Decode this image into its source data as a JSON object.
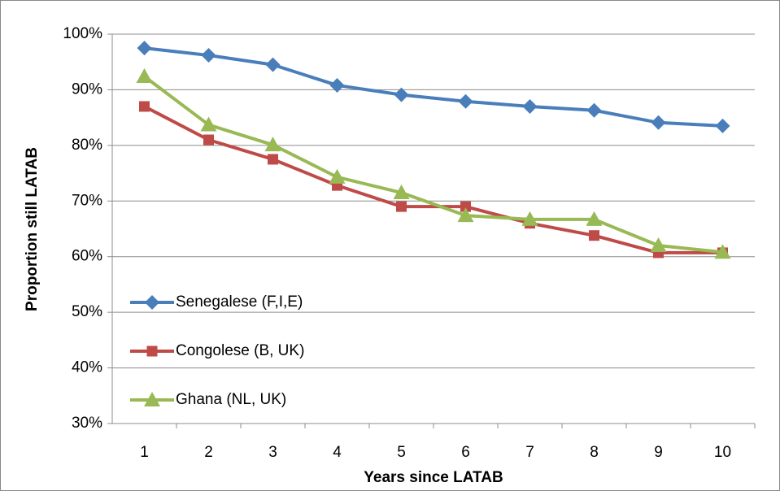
{
  "chart_data": {
    "type": "line",
    "x_label": "Years since LATAB",
    "y_label": "Proportion still LATAB",
    "categories": [
      "1",
      "2",
      "3",
      "4",
      "5",
      "6",
      "7",
      "8",
      "9",
      "10"
    ],
    "series": [
      {
        "name": "Senegalese (F,I,E)",
        "color": "#4a7ebb",
        "marker": "diamond",
        "values": [
          97.5,
          96.2,
          94.5,
          90.8,
          89.1,
          87.9,
          87,
          86.3,
          84.1,
          83.5
        ]
      },
      {
        "name": "Congolese (B, UK)",
        "color": "#be4b48",
        "marker": "square",
        "values": [
          87,
          81,
          77.5,
          72.8,
          69,
          69,
          66,
          63.8,
          60.7,
          60.7
        ]
      },
      {
        "name": "Ghana (NL, UK)",
        "color": "#98b954",
        "marker": "triangle",
        "values": [
          92.4,
          83.7,
          80.1,
          74.3,
          71.5,
          67.4,
          66.7,
          66.7,
          62,
          60.8
        ]
      }
    ],
    "ylim": [
      30,
      100
    ],
    "yticks": [
      {
        "value": 30,
        "label": "30%"
      },
      {
        "value": 40,
        "label": "40%"
      },
      {
        "value": 50,
        "label": "50%"
      },
      {
        "value": 60,
        "label": "60%"
      },
      {
        "value": 70,
        "label": "70%"
      },
      {
        "value": 80,
        "label": "80%"
      },
      {
        "value": 90,
        "label": "90%"
      },
      {
        "value": 100,
        "label": "100%"
      }
    ],
    "grid": true,
    "legend": "left"
  }
}
